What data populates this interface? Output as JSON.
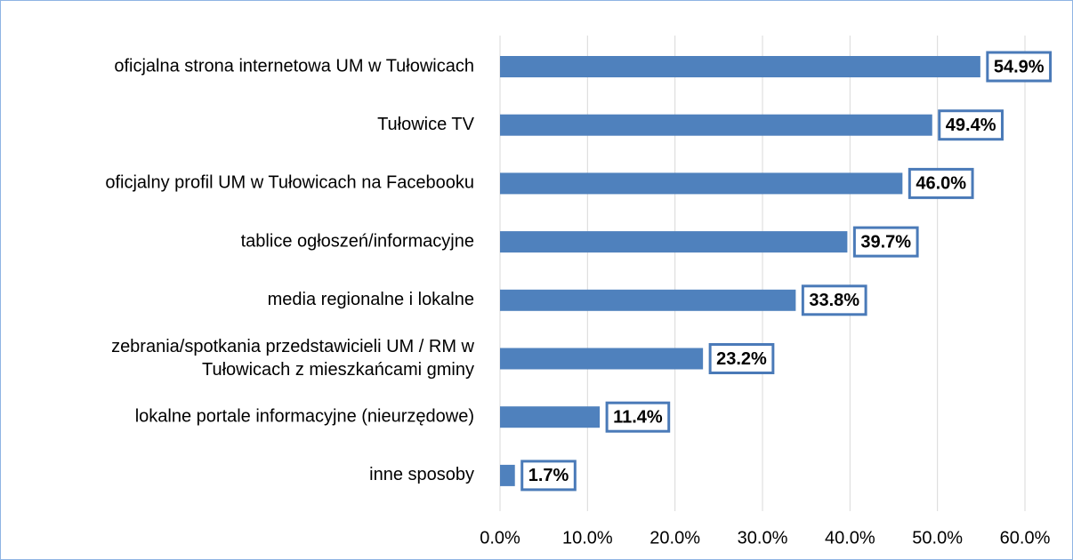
{
  "chart_data": {
    "type": "bar",
    "orientation": "horizontal",
    "categories": [
      "oficjalna strona internetowa UM w Tułowicach",
      "Tułowice TV",
      "oficjalny profil UM w Tułowicach na Facebooku",
      "tablice ogłoszeń/informacyjne",
      "media regionalne i lokalne",
      [
        "zebrania/spotkania przedstawicieli UM / RM w",
        "Tułowicach z mieszkańcami gminy"
      ],
      "lokalne portale informacyjne (nieurzędowe)",
      "inne sposoby"
    ],
    "values": [
      54.9,
      49.4,
      46.0,
      39.7,
      33.8,
      23.2,
      11.4,
      1.7
    ],
    "value_labels": [
      "54.9%",
      "49.4%",
      "46.0%",
      "39.7%",
      "33.8%",
      "23.2%",
      "11.4%",
      "1.7%"
    ],
    "color": "#4f81bd",
    "xlim": [
      0,
      60
    ],
    "xticks": [
      {
        "value": 0,
        "label": "0.0%"
      },
      {
        "value": 10,
        "label": "10.0%"
      },
      {
        "value": 20,
        "label": "20.0%"
      },
      {
        "value": 30,
        "label": "30.0%"
      },
      {
        "value": 40,
        "label": "40.0%"
      },
      {
        "value": 50,
        "label": "50.0%"
      },
      {
        "value": 60,
        "label": "60.0%"
      }
    ],
    "grid": true
  }
}
